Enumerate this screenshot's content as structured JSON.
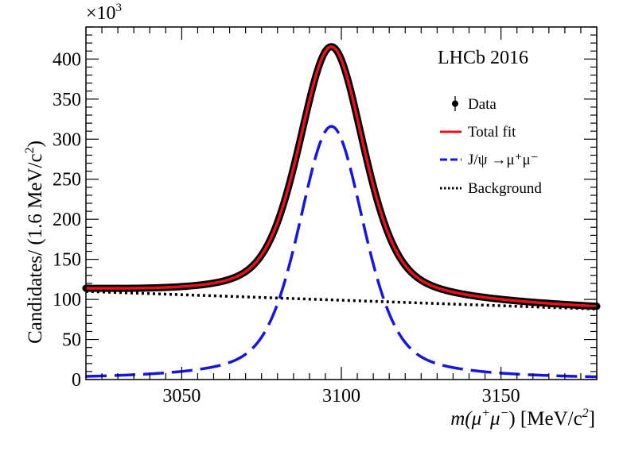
{
  "chart_data": {
    "type": "line",
    "title": "",
    "annotation": "LHCb 2016",
    "xlabel": {
      "prefix": "m(μ",
      "sup1": "+",
      "mid": "μ",
      "sup2": "−",
      "suffix": ") [MeV/c",
      "sup3": "2",
      "end": "]"
    },
    "ylabel": {
      "text": "Candidates/ (1.6 MeV/c",
      "sup": "2",
      "end": ")"
    },
    "y_multiplier": {
      "base": "×10",
      "exp": "3"
    },
    "xlim": [
      3020,
      3180
    ],
    "ylim": [
      0,
      440
    ],
    "x_ticks": [
      3050,
      3100,
      3150
    ],
    "x_tick_labels": [
      "3050",
      "3100",
      "3150"
    ],
    "y_ticks": [
      0,
      50,
      100,
      150,
      200,
      250,
      300,
      350,
      400
    ],
    "y_tick_labels": [
      "0",
      "50",
      "100",
      "150",
      "200",
      "250",
      "300",
      "350",
      "400"
    ],
    "legend": [
      {
        "key": "data",
        "label": "Data",
        "color": "#000000",
        "style": "marker"
      },
      {
        "key": "total",
        "label": "Total fit",
        "color": "#e8111b",
        "style": "solid"
      },
      {
        "key": "signal",
        "label": "J/ψ →μ⁺μ⁻",
        "color": "#1616e0",
        "style": "dashed"
      },
      {
        "key": "background",
        "label": "Background",
        "color": "#000000",
        "style": "dotted"
      }
    ],
    "legend_position": "top-right",
    "model": {
      "signal": {
        "mean": 3096.9,
        "peak": 316,
        "sigma": 10,
        "tail_sigma": 13
      },
      "background": {
        "at_xmin": 110,
        "at_xmax": 88
      }
    },
    "series": [
      {
        "name": "Data",
        "x": [
          3020,
          3030,
          3040,
          3050,
          3060,
          3070,
          3080,
          3085,
          3090,
          3095,
          3097,
          3100,
          3105,
          3110,
          3120,
          3130,
          3140,
          3150,
          3160,
          3170,
          3180
        ],
        "y": [
          111,
          112,
          113.5,
          117,
          125,
          145,
          205,
          266,
          340,
          405,
          417,
          408,
          356,
          278,
          168,
          128,
          111,
          102,
          96,
          92,
          89
        ]
      },
      {
        "name": "Total fit",
        "x": [
          3020,
          3030,
          3040,
          3050,
          3060,
          3070,
          3080,
          3085,
          3090,
          3095,
          3097,
          3100,
          3105,
          3110,
          3120,
          3130,
          3140,
          3150,
          3160,
          3170,
          3180
        ],
        "y": [
          111,
          112,
          113.5,
          117,
          125,
          145,
          205,
          266,
          340,
          405,
          415,
          406,
          354,
          276,
          167,
          127,
          110,
          101,
          95,
          91,
          88
        ]
      },
      {
        "name": "J/ψ →μ⁺μ⁻",
        "x": [
          3020,
          3030,
          3040,
          3050,
          3060,
          3070,
          3080,
          3085,
          3090,
          3095,
          3097,
          3100,
          3105,
          3110,
          3120,
          3130,
          3140,
          3150,
          3160,
          3170,
          3180
        ],
        "y": [
          3,
          4,
          6,
          12,
          24,
          48,
          108,
          176,
          250,
          308,
          316,
          303,
          251,
          170,
          60,
          20,
          6,
          2,
          1,
          0.5,
          0.3
        ]
      },
      {
        "name": "Background",
        "x": [
          3020,
          3180
        ],
        "y": [
          110,
          88
        ]
      }
    ]
  }
}
